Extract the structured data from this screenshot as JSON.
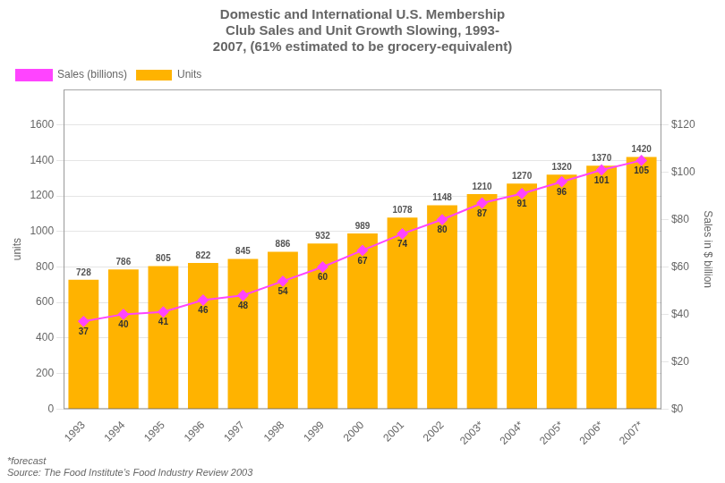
{
  "chart_data": {
    "type": "bar",
    "title": [
      "Domestic and International U.S. Membership",
      "Club Sales and Unit Growth Slowing, 1993-",
      "2007, (61% estimated to be grocery-equivalent)"
    ],
    "categories": [
      "1993",
      "1994",
      "1995",
      "1996",
      "1997",
      "1998",
      "1999",
      "2000",
      "2001",
      "2002",
      "2003*",
      "2004*",
      "2005*",
      "2006*",
      "2007*"
    ],
    "series": [
      {
        "name": "Units",
        "type": "bar",
        "color": "#FFB300",
        "values": [
          728,
          786,
          805,
          822,
          845,
          886,
          932,
          989,
          1078,
          1148,
          1210,
          1270,
          1320,
          1370,
          1420
        ]
      },
      {
        "name": "Sales (billions)",
        "type": "line",
        "color": "#FF44FF",
        "marker": "diamond",
        "axis": "y2",
        "values": [
          37,
          40,
          41,
          46,
          48,
          54,
          60,
          67,
          74,
          80,
          87,
          91,
          96,
          101,
          105
        ]
      }
    ],
    "ylabel": "units",
    "y2label": "Sales in $ billion",
    "ylim": [
      0,
      1800
    ],
    "yticks": [
      0,
      200,
      400,
      600,
      800,
      1000,
      1200,
      1400,
      1600
    ],
    "y2lim": [
      0,
      135
    ],
    "y2ticks": [
      {
        "value": 0,
        "label": "$0"
      },
      {
        "value": 20,
        "label": "$20"
      },
      {
        "value": 40,
        "label": "$40"
      },
      {
        "value": 60,
        "label": "$60"
      },
      {
        "value": 80,
        "label": "$80"
      },
      {
        "value": 100,
        "label": "$100"
      },
      {
        "value": 120,
        "label": "$120"
      }
    ],
    "grid": true,
    "legend": "upper left",
    "data_labels": true,
    "annotations": [
      "*forecast",
      "Source: The Food Institute’s Food Industry Review 2003"
    ]
  }
}
